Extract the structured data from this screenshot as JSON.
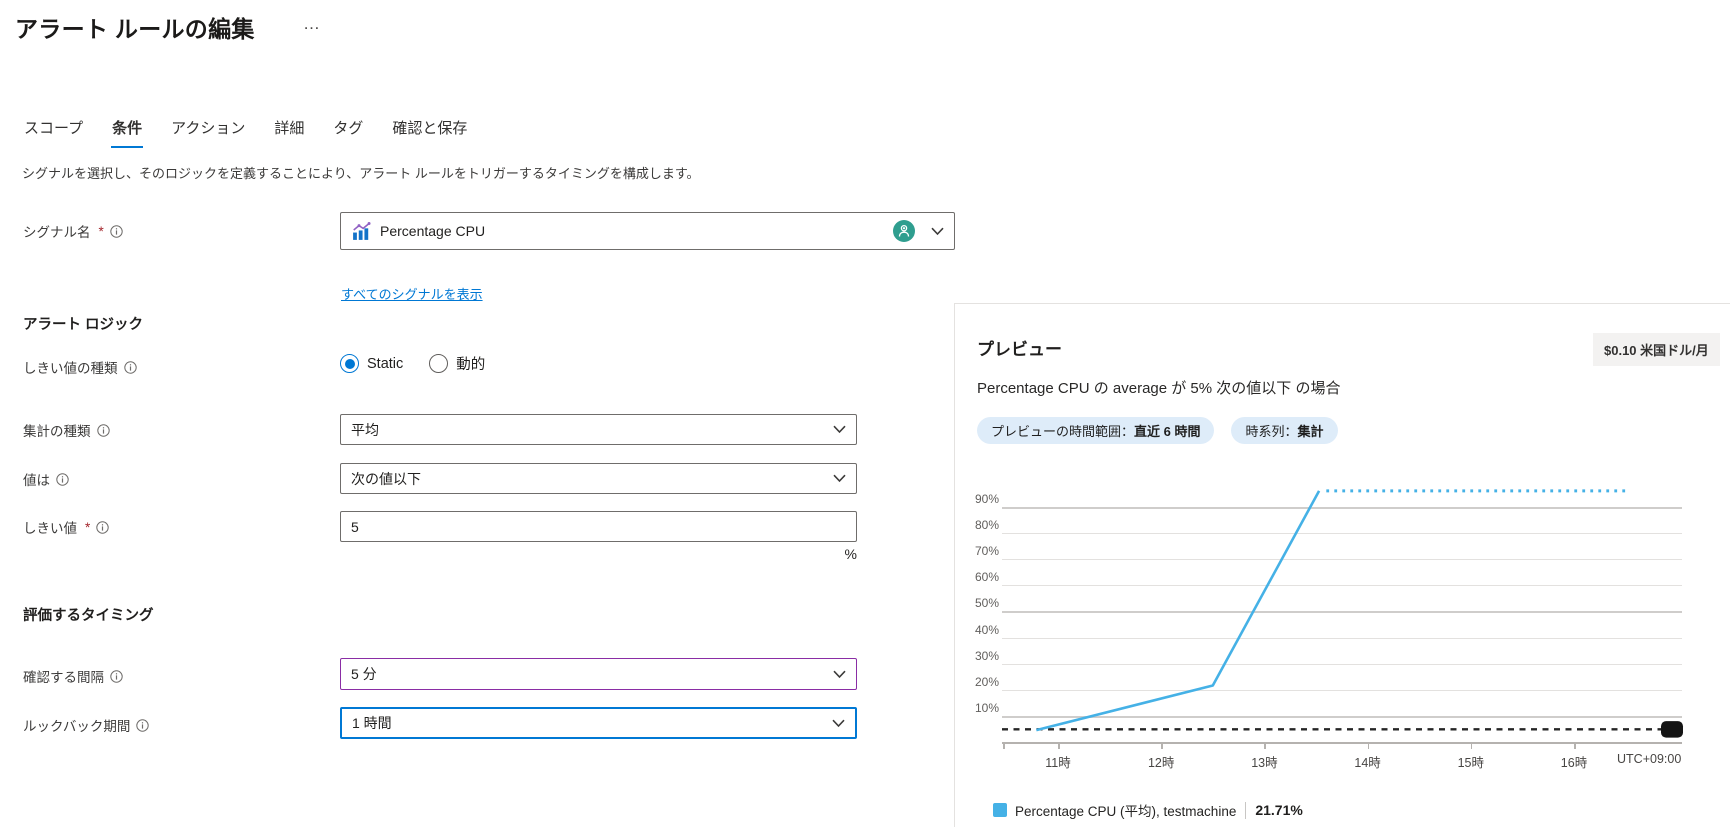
{
  "page": {
    "title": "アラート ルールの編集",
    "more": "…"
  },
  "tabs": [
    {
      "label": "スコープ"
    },
    {
      "label": "条件"
    },
    {
      "label": "アクション"
    },
    {
      "label": "詳細"
    },
    {
      "label": "タグ"
    },
    {
      "label": "確認と保存"
    }
  ],
  "description": "シグナルを選択し、そのロジックを定義することにより、アラート ルールをトリガーするタイミングを構成します。",
  "form": {
    "signal": {
      "label": "シグナル名",
      "value": "Percentage CPU"
    },
    "show_all_signals_link": "すべてのシグナルを表示",
    "alert_logic_heading": "アラート ロジック",
    "threshold_type": {
      "label": "しきい値の種類",
      "options": [
        "Static",
        "動的"
      ],
      "selected": "Static"
    },
    "aggregation": {
      "label": "集計の種類",
      "value": "平均"
    },
    "operator": {
      "label": "値は",
      "value": "次の値以下"
    },
    "threshold": {
      "label": "しきい値",
      "value": "5",
      "unit": "%"
    },
    "evaluation_heading": "評価するタイミング",
    "frequency": {
      "label": "確認する間隔",
      "value": "5 分"
    },
    "lookback": {
      "label": "ルックバック期間",
      "value": "1 時間"
    }
  },
  "preview": {
    "heading": "プレビュー",
    "price_badge": "$0.10 米国ドル/月",
    "condition": "Percentage CPU の average が 5% 次の値以下 の場合",
    "pills": [
      {
        "label": "プレビューの時間範囲：",
        "value": "直近 6 時間"
      },
      {
        "label": "時系列：",
        "value": "集計"
      }
    ],
    "legend": {
      "name": "Percentage CPU (平均), testmachine",
      "value": "21.71%"
    }
  },
  "chart_data": {
    "type": "line",
    "title": "プレビュー",
    "xlabel": "",
    "ylabel": "",
    "ylim": [
      0,
      100
    ],
    "grid": true,
    "legend_position": "bottom",
    "y_ticks": [
      10,
      20,
      30,
      40,
      50,
      60,
      70,
      80,
      90
    ],
    "y_tick_suffix": "%",
    "y_major_ticks": [
      10,
      50,
      90
    ],
    "x_ticks": [
      {
        "h": 11,
        "label": "11時"
      },
      {
        "h": 12,
        "label": "12時"
      },
      {
        "h": 13,
        "label": "13時"
      },
      {
        "h": 14,
        "label": "14時"
      },
      {
        "h": 15,
        "label": "15時"
      },
      {
        "h": 16,
        "label": "16時"
      }
    ],
    "x_axis_note": "UTC+09:00",
    "series": [
      {
        "name": "Percentage CPU (平均), testmachine",
        "color": "#45b1e6",
        "solid": [
          [
            10.79,
            4.7
          ],
          [
            12.5,
            21.71
          ],
          [
            13.53,
            96
          ]
        ],
        "dotted": [
          [
            13.6,
            96
          ],
          [
            16.52,
            96
          ]
        ],
        "current_value": "21.71%"
      }
    ],
    "threshold": {
      "value": 5,
      "style": "dashed",
      "color": "#262626"
    }
  },
  "colors": {
    "accent": "#0078d4",
    "line": "#45b1e6",
    "pill_bg": "#deecf9",
    "badge_bg": "#f3f2f1",
    "changed_border": "#8a2da5",
    "focus_border": "#0078d4"
  }
}
